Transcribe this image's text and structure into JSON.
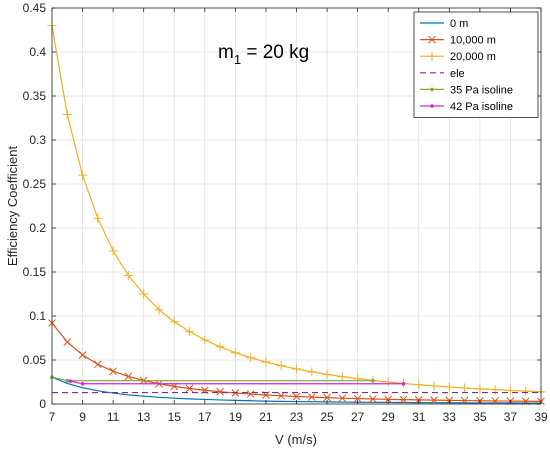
{
  "chart_data": {
    "type": "line",
    "title": "",
    "annotation": {
      "text": "m",
      "subscript": "1",
      "suffix": " = 20 kg"
    },
    "xlabel": "V (m/s)",
    "ylabel": "Efficiency Coefficient",
    "xlim": [
      7,
      39
    ],
    "ylim": [
      0,
      0.45
    ],
    "xticks": [
      7,
      9,
      11,
      13,
      15,
      17,
      19,
      21,
      23,
      25,
      27,
      29,
      31,
      33,
      35,
      37,
      39
    ],
    "yticks": [
      0,
      0.05,
      0.1,
      0.15,
      0.2,
      0.25,
      0.3,
      0.35,
      0.4,
      0.45
    ],
    "ytick_labels": [
      "0",
      "0.05",
      "0.1",
      "0.15",
      "0.2",
      "0.25",
      "0.3",
      "0.35",
      "0.4",
      "0.45"
    ],
    "grid": true,
    "legend_position": "top-right",
    "series": [
      {
        "name": "0 m",
        "color": "#0072BD",
        "marker": "none",
        "style": "solid",
        "x": [
          7,
          8,
          9,
          10,
          11,
          12,
          13,
          14,
          15,
          16,
          17,
          18,
          19,
          20,
          21,
          22,
          23,
          24,
          25,
          26,
          27,
          28,
          29,
          30,
          31,
          32,
          33,
          34,
          35,
          36,
          37,
          38,
          39
        ],
        "y": [
          0.0305,
          0.0234,
          0.0185,
          0.015,
          0.0124,
          0.0104,
          0.0089,
          0.0076,
          0.0066,
          0.0058,
          0.0052,
          0.0046,
          0.0041,
          0.0037,
          0.0033,
          0.003,
          0.0028,
          0.0026,
          0.0024,
          0.0022,
          0.002,
          0.0019,
          0.0018,
          0.0017,
          0.0016,
          0.0015,
          0.0014,
          0.0013,
          0.0012,
          0.0012,
          0.0011,
          0.001,
          0.001
        ]
      },
      {
        "name": "10,000 m",
        "color": "#D95319",
        "marker": "x",
        "style": "solid",
        "x": [
          7,
          8,
          9,
          10,
          11,
          12,
          13,
          14,
          15,
          16,
          17,
          18,
          19,
          20,
          21,
          22,
          23,
          24,
          25,
          26,
          27,
          28,
          29,
          30,
          31,
          32,
          33,
          34,
          35,
          36,
          37,
          38,
          39
        ],
        "y": [
          0.092,
          0.0705,
          0.0557,
          0.0451,
          0.0373,
          0.0313,
          0.0267,
          0.023,
          0.02,
          0.0176,
          0.0156,
          0.0139,
          0.0125,
          0.0113,
          0.0102,
          0.0093,
          0.0085,
          0.0078,
          0.0072,
          0.0066,
          0.0062,
          0.0057,
          0.0053,
          0.005,
          0.0047,
          0.0044,
          0.0041,
          0.0039,
          0.0037,
          0.0035,
          0.0033,
          0.0031,
          0.003
        ]
      },
      {
        "name": "20,000 m",
        "color": "#EDB120",
        "marker": "+",
        "style": "solid",
        "x": [
          7,
          8,
          9,
          10,
          11,
          12,
          13,
          14,
          15,
          16,
          17,
          18,
          19,
          20,
          21,
          22,
          23,
          24,
          25,
          26,
          27,
          28,
          29,
          30,
          31,
          32,
          33,
          34,
          35,
          36,
          37,
          38,
          39
        ],
        "y": [
          0.43,
          0.329,
          0.26,
          0.211,
          0.174,
          0.146,
          0.125,
          0.107,
          0.0935,
          0.0822,
          0.0728,
          0.065,
          0.0583,
          0.0526,
          0.0477,
          0.0435,
          0.0398,
          0.0365,
          0.0336,
          0.0311,
          0.0288,
          0.0268,
          0.025,
          0.0234,
          0.0219,
          0.0205,
          0.0193,
          0.0182,
          0.0172,
          0.0163,
          0.0154,
          0.0146,
          0.0139
        ]
      },
      {
        "name": "ele",
        "color": "#7E2F8E",
        "marker": "none",
        "style": "dashed",
        "x": [
          7,
          39
        ],
        "y": [
          0.013,
          0.013
        ]
      },
      {
        "name": "35 Pa isoline",
        "color": "#77AC30",
        "marker": ".",
        "style": "solid",
        "x": [
          7,
          8,
          28
        ],
        "y": [
          0.0305,
          0.0265,
          0.0265
        ]
      },
      {
        "name": "42 Pa isoline",
        "color": "#E020D8",
        "marker": ".",
        "style": "solid",
        "x": [
          8.2,
          9,
          30
        ],
        "y": [
          0.026,
          0.023,
          0.023
        ]
      }
    ]
  }
}
